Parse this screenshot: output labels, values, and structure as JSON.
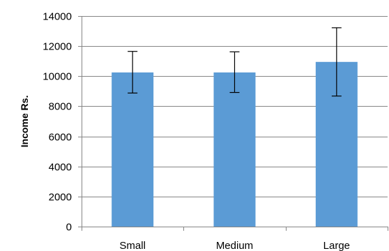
{
  "chart_data": {
    "type": "bar",
    "title": "",
    "xlabel": "",
    "ylabel": "Income Rs.",
    "categories": [
      "Small",
      "Medium",
      "Large"
    ],
    "values": [
      10250,
      10250,
      10950
    ],
    "error_low": [
      8880,
      8920,
      8680
    ],
    "error_high": [
      11650,
      11620,
      13220
    ],
    "ylim": [
      0,
      14000
    ],
    "yticks": [
      0,
      2000,
      4000,
      6000,
      8000,
      10000,
      12000,
      14000
    ],
    "grid": true,
    "legend": "none",
    "colors": {
      "bar": "#5b9bd5",
      "grid": "#868686",
      "axis": "#868686",
      "error_bar": "#000000"
    }
  }
}
